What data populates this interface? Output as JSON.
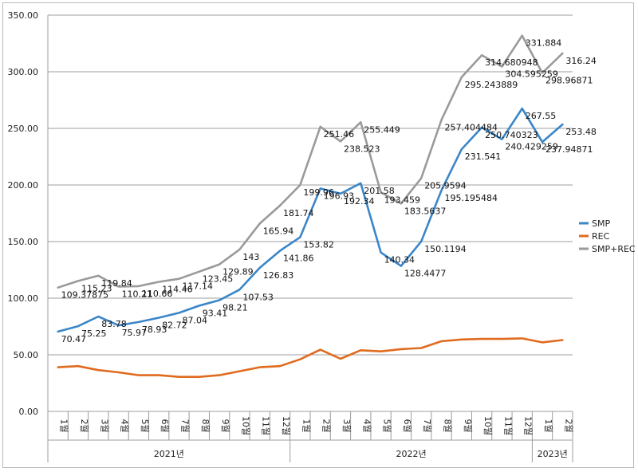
{
  "chart_data": {
    "type": "line",
    "title": "",
    "xlabel": "",
    "ylabel": "",
    "ylim": [
      0,
      350
    ],
    "yticks": [
      "0.00",
      "50.00",
      "100.00",
      "150.00",
      "200.00",
      "250.00",
      "300.00",
      "350.00"
    ],
    "grid": true,
    "legend_position": "right",
    "categories": [
      "1월",
      "2월",
      "3월",
      "4월",
      "5월",
      "6월",
      "7월",
      "8월",
      "9월",
      "10월",
      "11월",
      "12월",
      "1월",
      "2월",
      "3월",
      "4월",
      "5월",
      "6월",
      "7월",
      "8월",
      "9월",
      "10월",
      "11월",
      "12월",
      "1월",
      "2월"
    ],
    "groups": [
      {
        "label": "2021년",
        "start": 0,
        "end": 11
      },
      {
        "label": "2022년",
        "start": 12,
        "end": 23
      },
      {
        "label": "2023년",
        "start": 24,
        "end": 25
      }
    ],
    "series": [
      {
        "name": "SMP",
        "color": "#3a86c8",
        "values": [
          70.47,
          75.25,
          83.78,
          75.97,
          78.93,
          82.72,
          87.04,
          93.41,
          98.21,
          107.53,
          126.83,
          141.86,
          153.82,
          196.93,
          192.34,
          201.58,
          140.34,
          128.4477,
          150.1194,
          195.195484,
          231.541,
          250.740323,
          240.429259,
          267.55,
          237.94871,
          253.48
        ],
        "labels": [
          "70.47",
          "75.25",
          "83.78",
          "75.97",
          "78.93",
          "82.72",
          "87.04",
          "93.41",
          "98.21",
          "107.53",
          "126.83",
          "141.86",
          "153.82",
          "196.93",
          "192.34",
          "201.58",
          "140.34",
          "128.4477",
          "150.1194",
          "195.195484",
          "231.541",
          "250.740323",
          "240.429259",
          "267.55",
          "237.94871",
          "253.48"
        ]
      },
      {
        "name": "REC",
        "color": "#e06b1f",
        "values": [
          39,
          40,
          36.5,
          34.5,
          32,
          32,
          30.5,
          30.5,
          32,
          35.5,
          39,
          40,
          46,
          54.5,
          46.5,
          54,
          53,
          55,
          56,
          62,
          63.5,
          64,
          64,
          64.5,
          61,
          63
        ],
        "labels": []
      },
      {
        "name": "SMP+REC",
        "color": "#9a9a9a",
        "values": [
          109.37875,
          115.23,
          119.84,
          110.21,
          110.66,
          114.46,
          117.14,
          123.45,
          129.89,
          143,
          165.94,
          181.74,
          199.96,
          251.46,
          238.523,
          255.449,
          193.459,
          183.5637,
          205.9594,
          257.404484,
          295.243889,
          314.680948,
          304.595259,
          331.884,
          298.96871,
          316.24
        ],
        "labels": [
          "109.37875",
          "115.23",
          "119.84",
          "110.21",
          "110.66",
          "114.46",
          "117.14",
          "123.45",
          "129.89",
          "143",
          "165.94",
          "181.74",
          "199.96",
          "251.46",
          "238.523",
          "255.449",
          "193.459",
          "183.5637",
          "205.9594",
          "257.404484",
          "295.243889",
          "314.680948",
          "304.595259",
          "331.884",
          "298.96871",
          "316.24"
        ]
      }
    ]
  }
}
